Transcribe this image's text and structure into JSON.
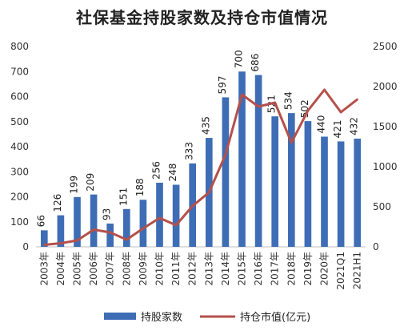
{
  "chart_data": {
    "type": "bar+line",
    "title": "社保基金持股家数及持仓市值情况",
    "categories": [
      "2003年",
      "2004年",
      "2005年",
      "2006年",
      "2007年",
      "2008年",
      "2009年",
      "2010年",
      "2011年",
      "2012年",
      "2013年",
      "2014年",
      "2015年",
      "2016年",
      "2017年",
      "2018年",
      "2019年",
      "2020年",
      "2021Q1",
      "2021H1"
    ],
    "series": [
      {
        "name": "持股家数",
        "type": "bar",
        "axis": "left",
        "color": "#3e6db5",
        "values": [
          66,
          126,
          199,
          209,
          93,
          151,
          188,
          256,
          248,
          333,
          435,
          597,
          700,
          686,
          521,
          534,
          502,
          440,
          421,
          432
        ],
        "labels_shown": true
      },
      {
        "name": "持仓市值(亿元)",
        "type": "line",
        "axis": "right",
        "color": "#b5504b",
        "values": [
          25,
          45,
          80,
          215,
          180,
          90,
          230,
          360,
          270,
          510,
          680,
          1150,
          1900,
          1750,
          1800,
          1300,
          1700,
          1960,
          1680,
          1840
        ]
      }
    ],
    "y_left": {
      "min": 0,
      "max": 800,
      "ticks": [
        0,
        100,
        200,
        300,
        400,
        500,
        600,
        700,
        800
      ]
    },
    "y_right": {
      "min": 0,
      "max": 2500,
      "ticks": [
        0,
        500,
        1000,
        1500,
        2000,
        2500
      ]
    },
    "grid": false,
    "legend_position": "bottom"
  }
}
